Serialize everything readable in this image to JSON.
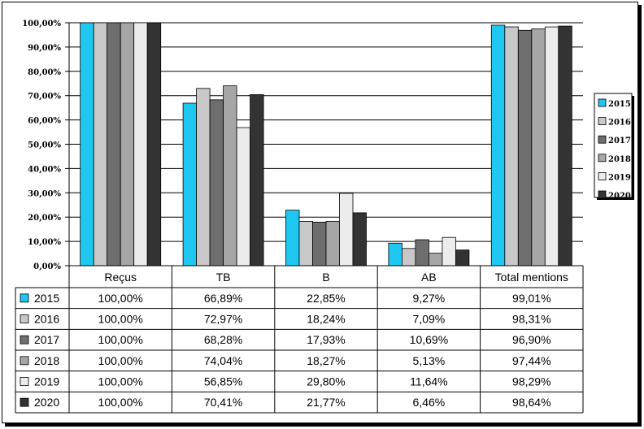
{
  "chart_data": {
    "type": "bar",
    "categories": [
      "Reçus",
      "TB",
      "B",
      "AB",
      "Total mentions"
    ],
    "series": [
      {
        "name": "2015",
        "color": "#1ec8f0",
        "values": [
          100.0,
          66.89,
          22.85,
          9.27,
          99.01
        ],
        "labels": [
          "100,00%",
          "66,89%",
          "22,85%",
          "9,27%",
          "99,01%"
        ]
      },
      {
        "name": "2016",
        "color": "#c8c8c8",
        "values": [
          100.0,
          72.97,
          18.24,
          7.09,
          98.31
        ],
        "labels": [
          "100,00%",
          "72,97%",
          "18,24%",
          "7,09%",
          "98,31%"
        ]
      },
      {
        "name": "2017",
        "color": "#6e6e6e",
        "values": [
          100.0,
          68.28,
          17.93,
          10.69,
          96.9
        ],
        "labels": [
          "100,00%",
          "68,28%",
          "17,93%",
          "10,69%",
          "96,90%"
        ]
      },
      {
        "name": "2018",
        "color": "#a6a6a6",
        "values": [
          100.0,
          74.04,
          18.27,
          5.13,
          97.44
        ],
        "labels": [
          "100,00%",
          "74,04%",
          "18,27%",
          "5,13%",
          "97,44%"
        ]
      },
      {
        "name": "2019",
        "color": "#ececec",
        "values": [
          100.0,
          56.85,
          29.8,
          11.64,
          98.29
        ],
        "labels": [
          "100,00%",
          "56,85%",
          "29,80%",
          "11,64%",
          "98,29%"
        ]
      },
      {
        "name": "2020",
        "color": "#333333",
        "values": [
          100.0,
          70.41,
          21.77,
          6.46,
          98.64
        ],
        "labels": [
          "100,00%",
          "70,41%",
          "21,77%",
          "6,46%",
          "98,64%"
        ]
      }
    ],
    "ylim": [
      0,
      100
    ],
    "yticks": [
      "0,00%",
      "10,00%",
      "20,00%",
      "30,00%",
      "40,00%",
      "50,00%",
      "60,00%",
      "70,00%",
      "80,00%",
      "90,00%",
      "100,00%"
    ],
    "grid": true,
    "legend": "right",
    "data_table": true
  }
}
